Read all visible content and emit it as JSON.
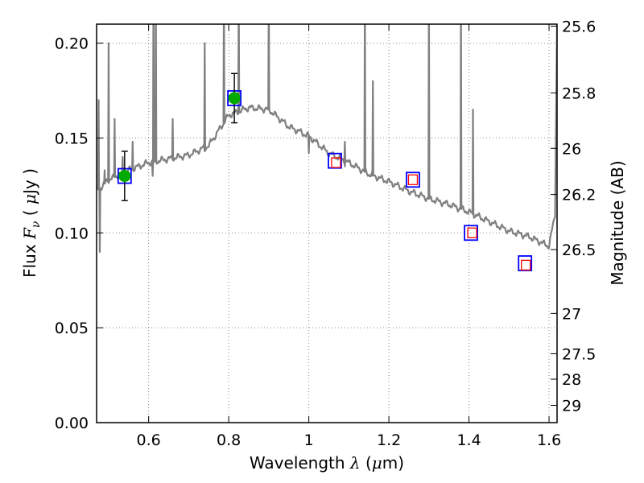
{
  "chart_data": {
    "type": "scatter",
    "title": "",
    "xlabel": {
      "prefix": "Wavelength  ",
      "symbol": "λ",
      "unit_open": " (",
      "unit_mu": "μ",
      "unit_rest": "m)"
    },
    "ylabel": {
      "prefix": "Flux  ",
      "symbol": "F",
      "subscript": "ν",
      "unit_open": "  ( ",
      "unit_mu": "μ",
      "unit_rest": "Jy )"
    },
    "y2label": "Magnitude (AB)",
    "xlim": [
      0.47,
      1.62
    ],
    "ylim": [
      0.0,
      0.21
    ],
    "grid": true,
    "x_ticks": [
      0.6,
      0.8,
      1.0,
      1.2,
      1.4,
      1.6
    ],
    "x_tick_labels": [
      "0.6",
      "0.8",
      "1",
      "1.2",
      "1.4",
      "1.6"
    ],
    "y_ticks": [
      0.0,
      0.05,
      0.1,
      0.15,
      0.2
    ],
    "y_tick_labels": [
      "0.00",
      "0.05",
      "0.10",
      "0.15",
      "0.20"
    ],
    "mag_ticks": [
      25.6,
      25.8,
      26,
      26.2,
      26.5,
      27,
      27.5,
      28,
      29
    ],
    "mag_tick_labels": [
      "25.6",
      "25.8",
      "26",
      "26.2",
      "26.5",
      "27",
      "27.5",
      "28",
      "29"
    ],
    "model_sed": {
      "name": "model spectrum",
      "color": "#808080",
      "continuum": [
        [
          0.47,
          0.122
        ],
        [
          0.5,
          0.128
        ],
        [
          0.55,
          0.133
        ],
        [
          0.6,
          0.137
        ],
        [
          0.65,
          0.139
        ],
        [
          0.7,
          0.141
        ],
        [
          0.75,
          0.146
        ],
        [
          0.8,
          0.162
        ],
        [
          0.85,
          0.166
        ],
        [
          0.9,
          0.165
        ],
        [
          0.95,
          0.156
        ],
        [
          1.0,
          0.151
        ],
        [
          1.05,
          0.142
        ],
        [
          1.1,
          0.137
        ],
        [
          1.15,
          0.131
        ],
        [
          1.2,
          0.127
        ],
        [
          1.25,
          0.122
        ],
        [
          1.3,
          0.118
        ],
        [
          1.35,
          0.115
        ],
        [
          1.4,
          0.111
        ],
        [
          1.45,
          0.106
        ],
        [
          1.5,
          0.101
        ],
        [
          1.55,
          0.098
        ],
        [
          1.6,
          0.093
        ],
        [
          1.615,
          0.11
        ],
        [
          1.62,
          0.21
        ]
      ],
      "emission_lines": [
        [
          0.475,
          0.17
        ],
        [
          0.49,
          0.133
        ],
        [
          0.5,
          0.2
        ],
        [
          0.515,
          0.16
        ],
        [
          0.535,
          0.14
        ],
        [
          0.56,
          0.148
        ],
        [
          0.612,
          0.23
        ],
        [
          0.618,
          0.23
        ],
        [
          0.66,
          0.16
        ],
        [
          0.74,
          0.2
        ],
        [
          0.788,
          0.23
        ],
        [
          0.825,
          0.23
        ],
        [
          0.9,
          0.23
        ],
        [
          1.09,
          0.148
        ],
        [
          1.14,
          0.23
        ],
        [
          1.16,
          0.18
        ],
        [
          1.3,
          0.23
        ],
        [
          1.38,
          0.23
        ],
        [
          1.41,
          0.165
        ]
      ],
      "absorption_lines": [
        [
          0.478,
          0.09
        ],
        [
          0.61,
          0.13
        ],
        [
          0.74,
          0.143
        ],
        [
          1.0,
          0.142
        ],
        [
          1.09,
          0.135
        ]
      ]
    },
    "photometry": [
      {
        "x": 0.54,
        "y": 0.13,
        "yerr": 0.013,
        "kind": "detection"
      },
      {
        "x": 0.814,
        "y": 0.171,
        "yerr": 0.013,
        "kind": "detection"
      }
    ],
    "model_bandpass_flux": [
      {
        "x": 0.54,
        "y": 0.13
      },
      {
        "x": 0.814,
        "y": 0.171
      },
      {
        "x": 1.065,
        "y": 0.138
      },
      {
        "x": 1.26,
        "y": 0.128
      },
      {
        "x": 1.405,
        "y": 0.1
      },
      {
        "x": 1.54,
        "y": 0.084
      }
    ],
    "upper_limits": [
      {
        "x": 1.068,
        "y": 0.137
      },
      {
        "x": 1.26,
        "y": 0.128
      },
      {
        "x": 1.408,
        "y": 0.1
      },
      {
        "x": 1.542,
        "y": 0.083
      }
    ],
    "colors": {
      "detection": "#00aa00",
      "model_box": "#0000ff",
      "upper_limit": "#ff0000",
      "errorbar": "#000000",
      "axis": "#000000",
      "grid": "#888888"
    }
  }
}
